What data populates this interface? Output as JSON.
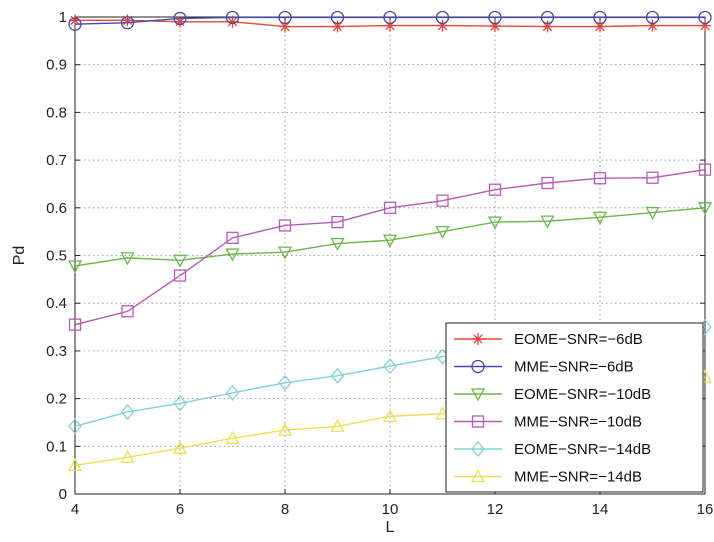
{
  "chart_data": {
    "type": "line",
    "xlabel": "L",
    "ylabel": "Pd",
    "xlim": [
      4,
      16
    ],
    "ylim": [
      0,
      1
    ],
    "xticks": [
      "4",
      "6",
      "8",
      "10",
      "12",
      "14",
      "16"
    ],
    "yticks": [
      "0",
      "0.1",
      "0.2",
      "0.3",
      "0.4",
      "0.5",
      "0.6",
      "0.7",
      "0.8",
      "0.9",
      "1"
    ],
    "grid": true,
    "legend_position": "bottom-right",
    "x": [
      4,
      5,
      6,
      7,
      8,
      9,
      10,
      11,
      12,
      13,
      14,
      15,
      16
    ],
    "series": [
      {
        "name": "EOME−SNR=−6dB",
        "color": "#e8463a",
        "marker": "star",
        "values": [
          0.993,
          0.993,
          0.99,
          0.99,
          0.98,
          0.98,
          0.982,
          0.982,
          0.981,
          0.98,
          0.98,
          0.982,
          0.982
        ]
      },
      {
        "name": "MME−SNR=−6dB",
        "color": "#4848a8",
        "marker": "circle",
        "values": [
          0.985,
          0.988,
          0.997,
          0.999,
          0.999,
          0.999,
          0.999,
          0.999,
          0.999,
          0.999,
          0.999,
          0.999,
          0.999
        ]
      },
      {
        "name": "EOME−SNR=−10dB",
        "color": "#6ab84a",
        "marker": "triangle-down",
        "values": [
          0.478,
          0.495,
          0.49,
          0.503,
          0.507,
          0.525,
          0.532,
          0.55,
          0.57,
          0.572,
          0.58,
          0.59,
          0.6
        ]
      },
      {
        "name": "MME−SNR=−10dB",
        "color": "#b85ab8",
        "marker": "square",
        "values": [
          0.355,
          0.383,
          0.458,
          0.537,
          0.563,
          0.57,
          0.6,
          0.615,
          0.638,
          0.652,
          0.662,
          0.663,
          0.68
        ]
      },
      {
        "name": "EOME−SNR=−14dB",
        "color": "#7fd2d8",
        "marker": "diamond",
        "values": [
          0.142,
          0.172,
          0.19,
          0.212,
          0.233,
          0.248,
          0.268,
          0.288,
          0.3,
          0.31,
          0.322,
          0.335,
          0.35
        ]
      },
      {
        "name": "MME−SNR=−14dB",
        "color": "#eedd55",
        "marker": "triangle-up",
        "values": [
          0.06,
          0.077,
          0.096,
          0.117,
          0.134,
          0.142,
          0.163,
          0.168,
          0.18,
          0.195,
          0.21,
          0.225,
          0.245
        ]
      }
    ]
  }
}
